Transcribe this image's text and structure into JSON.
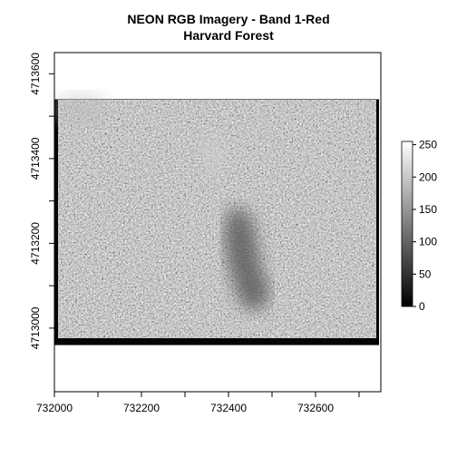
{
  "chart_data": {
    "type": "heatmap",
    "title": "NEON RGB Imagery - Band 1-Red",
    "subtitle": "Harvard Forest",
    "xlabel": "",
    "ylabel": "",
    "xlim": [
      732000,
      732750
    ],
    "ylim": [
      4712850,
      4713650
    ],
    "x_ticks": [
      732000,
      732100,
      732200,
      732300,
      732400,
      732500,
      732600,
      732700
    ],
    "x_tick_labels": [
      "732000",
      "",
      "732200",
      "",
      "732400",
      "",
      "732600",
      ""
    ],
    "y_ticks": [
      4713000,
      4713100,
      4713200,
      4713300,
      4713400,
      4713500,
      4713600
    ],
    "y_tick_labels": [
      "4713000",
      "",
      "4713200",
      "",
      "4713400",
      "",
      "4713600"
    ],
    "raster_extent": {
      "xmin": 732000,
      "xmax": 732760,
      "ymin": 4712960,
      "ymax": 4713540
    },
    "colorbar": {
      "palette": "grayscale",
      "low_color": "#000000",
      "high_color": "#ffffff",
      "range": [
        0,
        255
      ],
      "ticks": [
        0,
        50,
        100,
        150,
        200,
        250
      ],
      "tick_labels": [
        "0",
        "50",
        "100",
        "150",
        "200",
        "250"
      ]
    },
    "grid": false,
    "legend": "right"
  }
}
